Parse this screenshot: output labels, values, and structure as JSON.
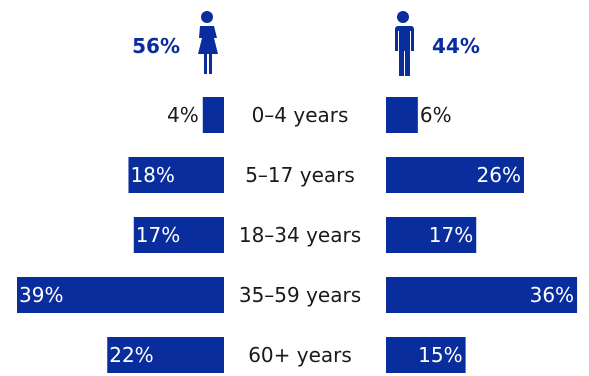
{
  "colors": {
    "bar": "#0a2d9e",
    "heading": "#0a2d9e",
    "label_inside": "#ffffff",
    "label_outside": "#1a1a1a",
    "category": "#1a1a1a"
  },
  "icons": {
    "female": "female-person-icon",
    "male": "male-person-icon"
  },
  "chart_data": {
    "type": "bar",
    "orientation": "horizontal-butterfly",
    "title": "",
    "categories": [
      "0–4 years",
      "5–17 years",
      "18–34 years",
      "35–59 years",
      "60+ years"
    ],
    "series": [
      {
        "side": "left",
        "total_label": "56%",
        "values": [
          4,
          18,
          17,
          39,
          22
        ],
        "value_labels": [
          "4%",
          "18%",
          "17%",
          "39%",
          "22%"
        ]
      },
      {
        "side": "right",
        "total_label": "44%",
        "values": [
          6,
          26,
          17,
          36,
          15
        ],
        "value_labels": [
          "6%",
          "26%",
          "17%",
          "36%",
          "15%"
        ]
      }
    ],
    "xlim": [
      0,
      40
    ],
    "grid": false,
    "legend": "none"
  }
}
